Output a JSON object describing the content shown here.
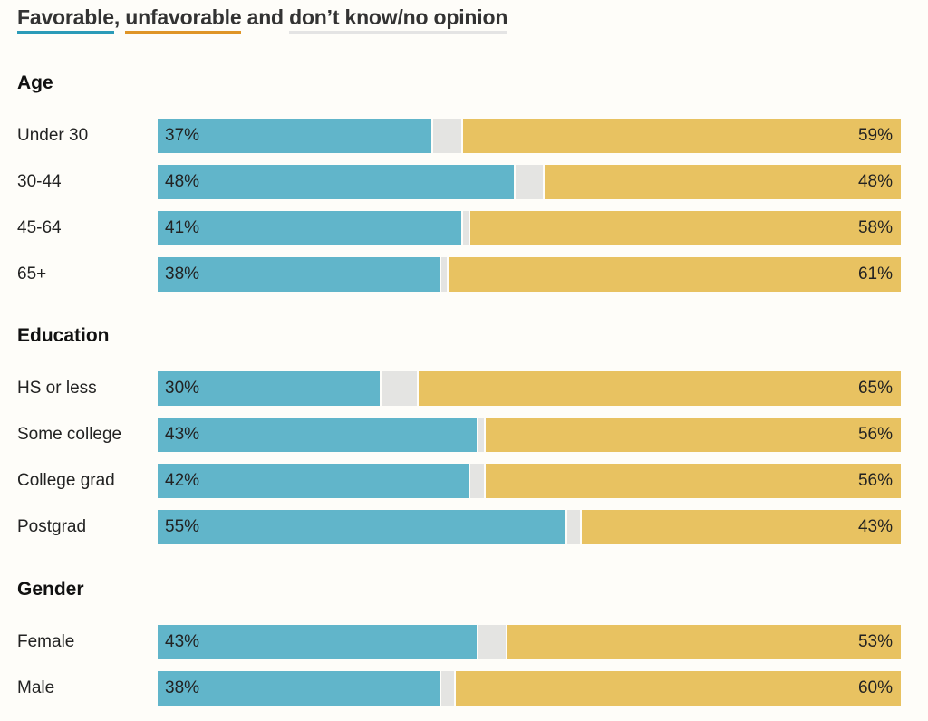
{
  "legend": {
    "favorable": "Favorable",
    "sep1": ", ",
    "unfavorable": "unfavorable",
    "sep2": " and ",
    "dont_know": "don’t know/no opinion",
    "colors": {
      "favorable_underline": "#2b9bb8",
      "unfavorable_underline": "#df9527",
      "dont_know_underline": "#e4e4e4"
    }
  },
  "colors": {
    "favorable": "#61b5ca",
    "dont_know": "#e4e4e2",
    "unfavorable": "#e8c261"
  },
  "chart_data": {
    "type": "bar",
    "subtype": "stacked-horizontal-100",
    "title": "Favorable, unfavorable and don’t know/no opinion",
    "series_names": [
      "Favorable",
      "Don’t know/no opinion",
      "Unfavorable"
    ],
    "groups": [
      {
        "name": "Age",
        "rows": [
          {
            "label": "Under 30",
            "favorable": 37,
            "dont_know": 4,
            "unfavorable": 59,
            "fav_label": "37%",
            "unf_label": "59%"
          },
          {
            "label": "30-44",
            "favorable": 48,
            "dont_know": 4,
            "unfavorable": 48,
            "fav_label": "48%",
            "unf_label": "48%"
          },
          {
            "label": "45-64",
            "favorable": 41,
            "dont_know": 1,
            "unfavorable": 58,
            "fav_label": "41%",
            "unf_label": "58%"
          },
          {
            "label": "65+",
            "favorable": 38,
            "dont_know": 1,
            "unfavorable": 61,
            "fav_label": "38%",
            "unf_label": "61%"
          }
        ]
      },
      {
        "name": "Education",
        "rows": [
          {
            "label": "HS or less",
            "favorable": 30,
            "dont_know": 5,
            "unfavorable": 65,
            "fav_label": "30%",
            "unf_label": "65%"
          },
          {
            "label": "Some college",
            "favorable": 43,
            "dont_know": 1,
            "unfavorable": 56,
            "fav_label": "43%",
            "unf_label": "56%"
          },
          {
            "label": "College grad",
            "favorable": 42,
            "dont_know": 2,
            "unfavorable": 56,
            "fav_label": "42%",
            "unf_label": "56%"
          },
          {
            "label": "Postgrad",
            "favorable": 55,
            "dont_know": 2,
            "unfavorable": 43,
            "fav_label": "55%",
            "unf_label": "43%"
          }
        ]
      },
      {
        "name": "Gender",
        "rows": [
          {
            "label": "Female",
            "favorable": 43,
            "dont_know": 4,
            "unfavorable": 53,
            "fav_label": "43%",
            "unf_label": "53%"
          },
          {
            "label": "Male",
            "favorable": 38,
            "dont_know": 2,
            "unfavorable": 60,
            "fav_label": "38%",
            "unf_label": "60%"
          }
        ]
      }
    ],
    "xlim": [
      0,
      100
    ]
  }
}
